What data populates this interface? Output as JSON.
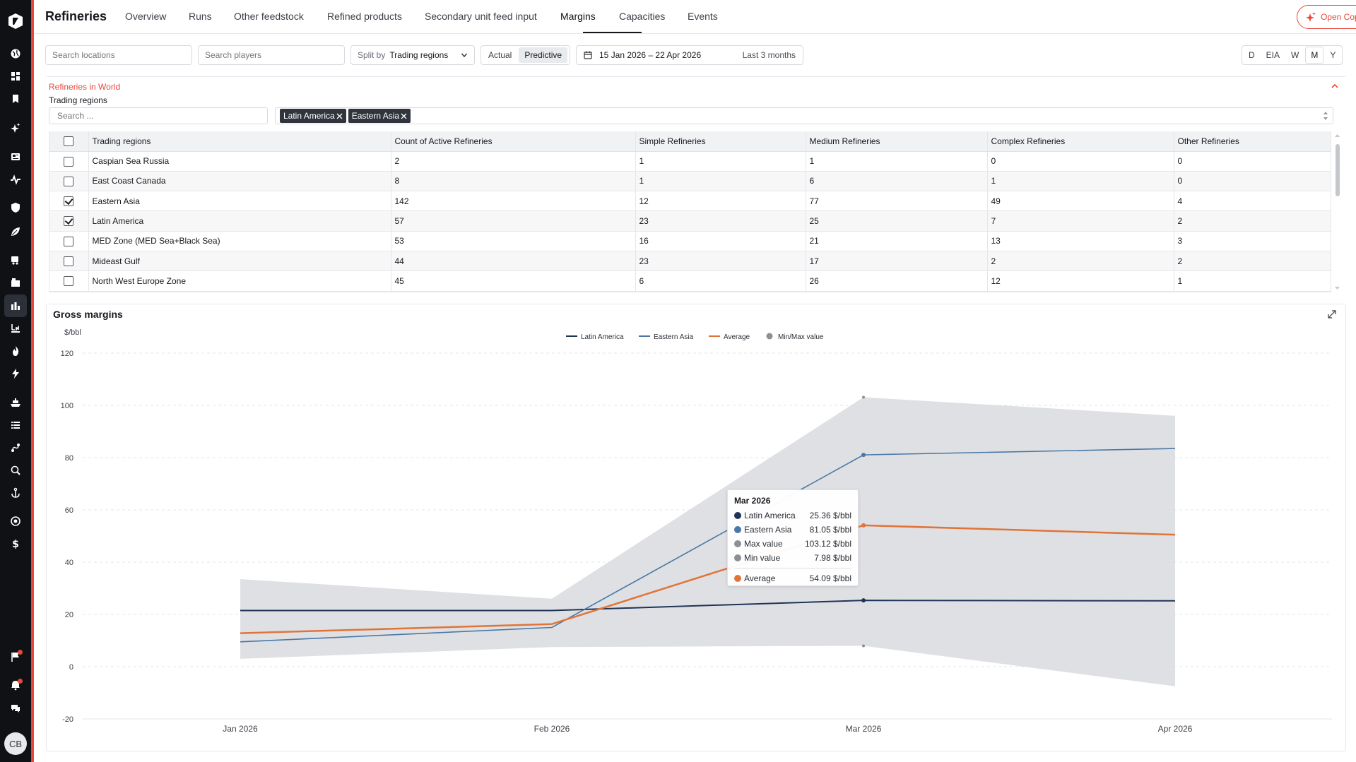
{
  "app": {
    "title": "Refineries",
    "tabs": [
      {
        "label": "Overview",
        "active": false
      },
      {
        "label": "Runs",
        "active": false
      },
      {
        "label": "Other feedstock",
        "active": false
      },
      {
        "label": "Refined products",
        "active": false
      },
      {
        "label": "Secondary unit feed input",
        "active": false
      },
      {
        "label": "Margins",
        "active": true
      },
      {
        "label": "Capacities",
        "active": false
      },
      {
        "label": "Events",
        "active": false
      }
    ],
    "copilot_label": "Open Copilot",
    "avatar_initials": "CB"
  },
  "filters": {
    "search_locations_placeholder": "Search locations",
    "search_players_placeholder": "Search players",
    "split_by_label": "Split by",
    "split_by_value": "Trading regions",
    "mode_actual": "Actual",
    "mode_predictive": "Predictive",
    "date_range": "15 Jan 2026 – 22 Apr 2026",
    "date_quick": "Last 3 months",
    "granularity": [
      "D",
      "EIA",
      "W",
      "M",
      "Y"
    ],
    "granularity_selected": "M"
  },
  "selector": {
    "section_title": "Refineries in World",
    "label": "Trading regions",
    "search_placeholder": "Search ...",
    "tags": [
      "Latin America",
      "Eastern Asia"
    ]
  },
  "table": {
    "columns": [
      "Trading regions",
      "Count of Active Refineries",
      "Simple Refineries",
      "Medium Refineries",
      "Complex Refineries",
      "Other Refineries"
    ],
    "rows": [
      {
        "checked": false,
        "cells": [
          "Caspian Sea Russia",
          "2",
          "1",
          "1",
          "0",
          "0"
        ]
      },
      {
        "checked": false,
        "cells": [
          "East Coast Canada",
          "8",
          "1",
          "6",
          "1",
          "0"
        ]
      },
      {
        "checked": true,
        "cells": [
          "Eastern Asia",
          "142",
          "12",
          "77",
          "49",
          "4"
        ]
      },
      {
        "checked": true,
        "cells": [
          "Latin America",
          "57",
          "23",
          "25",
          "7",
          "2"
        ]
      },
      {
        "checked": false,
        "cells": [
          "MED Zone (MED Sea+Black Sea)",
          "53",
          "16",
          "21",
          "13",
          "3"
        ]
      },
      {
        "checked": false,
        "cells": [
          "Mideast Gulf",
          "44",
          "23",
          "17",
          "2",
          "2"
        ]
      },
      {
        "checked": false,
        "cells": [
          "North West Europe Zone",
          "45",
          "6",
          "26",
          "12",
          "1"
        ]
      }
    ]
  },
  "chart": {
    "title": "Gross margins"
  },
  "colors": {
    "accent": "#e8473a",
    "latin_america": "#1f3556",
    "eastern_asia": "#4a78a6",
    "average": "#e07438",
    "minmax": "#8c8f94"
  },
  "chart_data": {
    "type": "line",
    "title": "Gross margins",
    "ylabel": "$/bbl",
    "xlabel": "",
    "categories": [
      "Jan 2026",
      "Feb 2026",
      "Mar 2026",
      "Apr 2026"
    ],
    "ylim": [
      -20,
      120
    ],
    "yticks": [
      -20,
      0,
      20,
      40,
      60,
      80,
      100,
      120
    ],
    "grid": true,
    "legend": "top-center",
    "series": [
      {
        "name": "Latin America",
        "values": [
          21.5,
          21.5,
          25.36,
          25.2
        ]
      },
      {
        "name": "Eastern Asia",
        "values": [
          9.5,
          15.0,
          81.05,
          83.5
        ]
      },
      {
        "name": "Average",
        "values": [
          12.8,
          16.3,
          54.09,
          50.5
        ]
      }
    ],
    "band": {
      "name": "Min/Max value",
      "min": [
        3.0,
        7.5,
        7.98,
        -7.5
      ],
      "max": [
        33.5,
        26.0,
        103.12,
        96.0
      ]
    },
    "tooltip": {
      "title": "Mar 2026",
      "rows": [
        {
          "label": "Latin America",
          "value": "25.36 $/bbl"
        },
        {
          "label": "Eastern Asia",
          "value": "81.05 $/bbl"
        },
        {
          "label": "Max value",
          "value": "103.12 $/bbl"
        },
        {
          "label": "Min value",
          "value": "7.98 $/bbl"
        },
        {
          "label": "Average",
          "value": "54.09 $/bbl"
        }
      ]
    }
  }
}
